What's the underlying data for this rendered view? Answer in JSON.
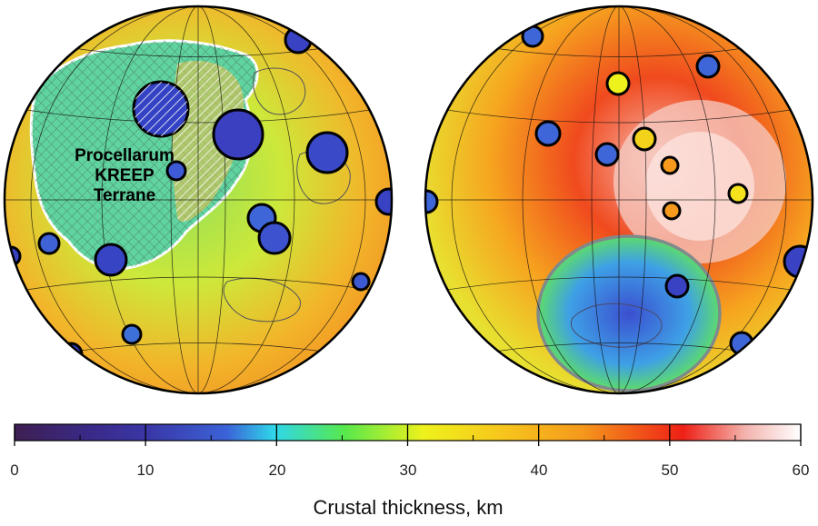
{
  "figure": {
    "annotation": [
      "Procellarum",
      "KREEP",
      "Terrane"
    ],
    "colorbar": {
      "label": "Crustal thickness, km",
      "min": 0,
      "max": 60,
      "ticks": [
        "0",
        "10",
        "20",
        "30",
        "40",
        "50",
        "60"
      ],
      "colors": [
        "#3e1f52",
        "#3a37a6",
        "#3b63d8",
        "#2fd6ea",
        "#57e84c",
        "#eef21c",
        "#f59a1c",
        "#ee2016",
        "#f3b4ae",
        "#ffffff"
      ]
    }
  }
}
